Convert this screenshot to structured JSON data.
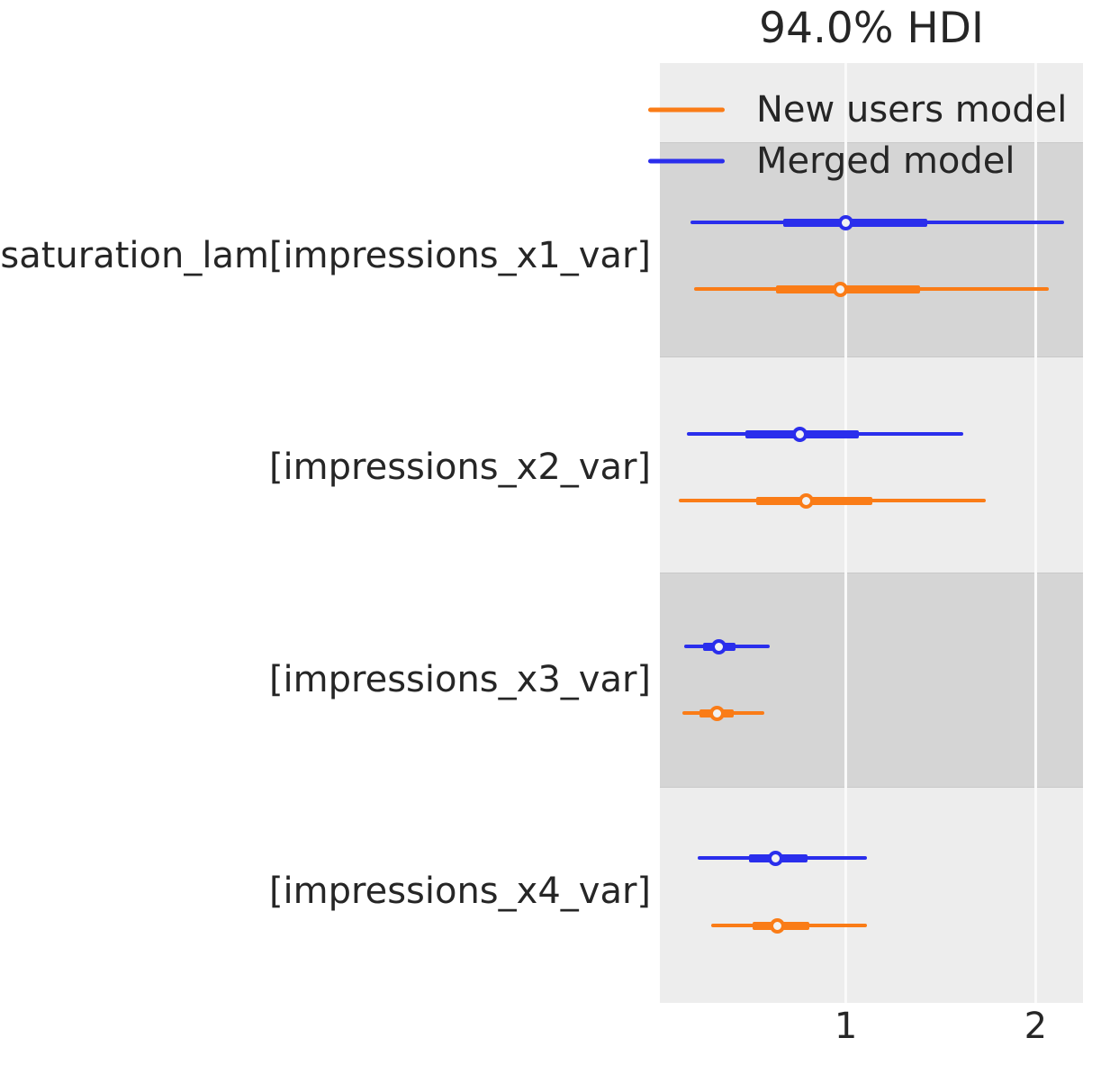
{
  "chart_data": {
    "type": "forest",
    "title": "94.0% HDI",
    "xlabel": "",
    "ylabel": "",
    "xticks": [
      1,
      2
    ],
    "xlim": [
      0.02,
      2.25
    ],
    "grid": "white vertical gridlines over alternating gray bands",
    "legend_position": "upper left inside plot",
    "interval_semantics": {
      "thin_line": "94% HDI interval",
      "thick_line": "interquartile range",
      "marker": "median (white dot)"
    },
    "colors": {
      "blue": "#2a2eec",
      "orange": "#fa7c17",
      "band_light": "#ededed",
      "band_dark": "#d5d5d5",
      "gridline": "#fafafa",
      "text": "#262626",
      "marker_fill": "#f2f2f2"
    },
    "legend": [
      {
        "name": "New users model",
        "color_key": "orange"
      },
      {
        "name": "Merged model",
        "color_key": "blue"
      }
    ],
    "rows": [
      {
        "label": "saturation_lam[impressions_x1_var]",
        "series": [
          {
            "model": "Merged model",
            "color_key": "blue",
            "hdi_94": [
              0.18,
              2.15
            ],
            "quartile": [
              0.67,
              1.43
            ],
            "median": 1.0
          },
          {
            "model": "New users model",
            "color_key": "orange",
            "hdi_94": [
              0.2,
              2.07
            ],
            "quartile": [
              0.63,
              1.39
            ],
            "median": 0.97
          }
        ]
      },
      {
        "label": "[impressions_x2_var]",
        "series": [
          {
            "model": "Merged model",
            "color_key": "blue",
            "hdi_94": [
              0.16,
              1.62
            ],
            "quartile": [
              0.47,
              1.07
            ],
            "median": 0.76
          },
          {
            "model": "New users model",
            "color_key": "orange",
            "hdi_94": [
              0.12,
              1.74
            ],
            "quartile": [
              0.53,
              1.14
            ],
            "median": 0.79
          }
        ]
      },
      {
        "label": "[impressions_x3_var]",
        "series": [
          {
            "model": "Merged model",
            "color_key": "blue",
            "hdi_94": [
              0.15,
              0.6
            ],
            "quartile": [
              0.25,
              0.42
            ],
            "median": 0.33
          },
          {
            "model": "New users model",
            "color_key": "orange",
            "hdi_94": [
              0.14,
              0.57
            ],
            "quartile": [
              0.23,
              0.41
            ],
            "median": 0.32
          }
        ]
      },
      {
        "label": "[impressions_x4_var]",
        "series": [
          {
            "model": "Merged model",
            "color_key": "blue",
            "hdi_94": [
              0.22,
              1.11
            ],
            "quartile": [
              0.49,
              0.8
            ],
            "median": 0.63
          },
          {
            "model": "New users model",
            "color_key": "orange",
            "hdi_94": [
              0.29,
              1.11
            ],
            "quartile": [
              0.51,
              0.81
            ],
            "median": 0.64
          }
        ]
      }
    ]
  }
}
